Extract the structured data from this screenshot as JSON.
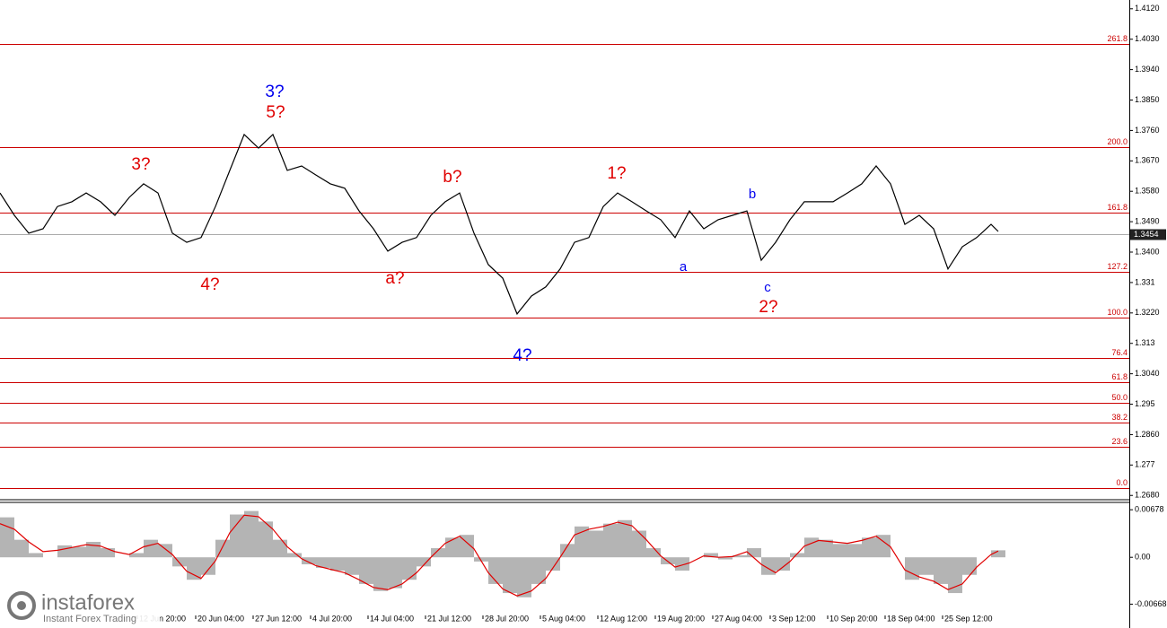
{
  "chart_data": [
    {
      "type": "line",
      "x": [
        0,
        4,
        8,
        12,
        16,
        20,
        24,
        28,
        32,
        36,
        40,
        44,
        48,
        52,
        56,
        60,
        64,
        68,
        72,
        76,
        80,
        84,
        88,
        92,
        96,
        100,
        104,
        108,
        112,
        116,
        120,
        124,
        128,
        132,
        136,
        140,
        144,
        148,
        152,
        156,
        160,
        164,
        168,
        172,
        176,
        180,
        184,
        188,
        192,
        196,
        200,
        204,
        208,
        212,
        216,
        220,
        224,
        228,
        232,
        236,
        240,
        244,
        248,
        252,
        256,
        260,
        264,
        268,
        272,
        276,
        278
      ],
      "values": [
        1.3575,
        1.3509,
        1.3456,
        1.3469,
        1.3535,
        1.3549,
        1.3575,
        1.3549,
        1.3509,
        1.3562,
        1.3602,
        1.3575,
        1.3456,
        1.3429,
        1.3443,
        1.3535,
        1.3642,
        1.3748,
        1.3708,
        1.3748,
        1.3642,
        1.3655,
        1.3628,
        1.3602,
        1.3589,
        1.3522,
        1.3469,
        1.3403,
        1.3429,
        1.3443,
        1.3509,
        1.3549,
        1.3575,
        1.3456,
        1.3363,
        1.3323,
        1.3217,
        1.327,
        1.3297,
        1.335,
        1.3429,
        1.3443,
        1.3535,
        1.3575,
        1.3549,
        1.3522,
        1.3496,
        1.3443,
        1.3522,
        1.3469,
        1.3496,
        1.3509,
        1.3522,
        1.3376,
        1.3429,
        1.3496,
        1.3549,
        1.3549,
        1.3549,
        1.3575,
        1.3602,
        1.3655,
        1.3602,
        1.3482,
        1.3509,
        1.3469,
        1.335,
        1.3416,
        1.3443,
        1.3482,
        1.3461
      ],
      "color": "#000000",
      "xlim": [
        0,
        314.5
      ],
      "ylim": [
        1.267,
        1.4146
      ],
      "xticks": [
        {
          "value": 38.25,
          "label": "12 Jun 20:00"
        },
        {
          "value": 54.5,
          "label": "20 Jun 04:00"
        },
        {
          "value": 70.5,
          "label": "27 Jun 12:00"
        },
        {
          "value": 86.5,
          "label": "4 Jul 20:00"
        },
        {
          "value": 102.5,
          "label": "14 Jul 04:00"
        },
        {
          "value": 118.5,
          "label": "21 Jul 12:00"
        },
        {
          "value": 134.5,
          "label": "28 Jul 20:00"
        },
        {
          "value": 150.5,
          "label": "5 Aug 04:00"
        },
        {
          "value": 166.5,
          "label": "12 Aug 12:00"
        },
        {
          "value": 182.5,
          "label": "19 Aug 20:00"
        },
        {
          "value": 198.5,
          "label": "27 Aug 04:00"
        },
        {
          "value": 214.5,
          "label": "3 Sep 12:00"
        },
        {
          "value": 230.5,
          "label": "10 Sep 20:00"
        },
        {
          "value": 246.5,
          "label": "18 Sep 04:00"
        },
        {
          "value": 262.5,
          "label": "25 Sep 12:00"
        }
      ],
      "yticks": [
        {
          "value": 1.412,
          "label": "1.4120"
        },
        {
          "value": 1.403,
          "label": "1.4030"
        },
        {
          "value": 1.394,
          "label": "1.3940"
        },
        {
          "value": 1.385,
          "label": "1.3850"
        },
        {
          "value": 1.376,
          "label": "1.3760"
        },
        {
          "value": 1.367,
          "label": "1.3670"
        },
        {
          "value": 1.358,
          "label": "1.3580"
        },
        {
          "value": 1.349,
          "label": "1.3490"
        },
        {
          "value": 1.34,
          "label": "1.3400"
        },
        1.331,
        {
          "value": 1.322,
          "label": "1.3220"
        },
        1.313,
        {
          "value": 1.304,
          "label": "1.3040"
        },
        1.295,
        {
          "value": 1.286,
          "label": "1.2860"
        },
        1.277,
        {
          "value": 1.268,
          "label": "1.2680"
        }
      ],
      "levels": [
        {
          "label": "261.8",
          "value": 1.4016
        },
        {
          "label": "200.0",
          "value": 1.3711
        },
        {
          "label": "161.8",
          "value": 1.3517
        },
        {
          "label": "127.2",
          "value": 1.3342
        },
        {
          "label": "100.0",
          "value": 1.3206
        },
        {
          "label": "76.4",
          "value": 1.3087
        },
        {
          "label": "61.8",
          "value": 1.3015
        },
        {
          "label": "50.0",
          "value": 1.2954
        },
        {
          "label": "38.2",
          "value": 1.2896
        },
        {
          "label": "23.6",
          "value": 1.2824
        },
        {
          "label": "0.0",
          "value": 1.2702
        }
      ],
      "level_color": "#cc0000",
      "last_value": 1.3454,
      "annotations": [
        "3?",
        "5?",
        "3?",
        "4?",
        "a?",
        "b?",
        "4?",
        "1?",
        "a",
        "b",
        "c",
        "2?"
      ]
    },
    {
      "type": "oscillator",
      "x": [
        0,
        4,
        8,
        12,
        16,
        20,
        24,
        28,
        32,
        36,
        40,
        44,
        48,
        52,
        56,
        60,
        64,
        68,
        72,
        76,
        80,
        84,
        88,
        92,
        96,
        100,
        104,
        108,
        112,
        116,
        120,
        124,
        128,
        132,
        136,
        140,
        144,
        148,
        152,
        156,
        160,
        164,
        168,
        172,
        176,
        180,
        184,
        188,
        192,
        196,
        200,
        204,
        208,
        212,
        216,
        220,
        224,
        228,
        232,
        236,
        240,
        244,
        248,
        252,
        256,
        260,
        264,
        268,
        272,
        276,
        278
      ],
      "series": [
        {
          "color": "#b4b4b4",
          "values": [
            0.0057,
            0.0025,
            0.0006,
            0,
            0.0017,
            0.0015,
            0.0022,
            0.0013,
            0,
            0.0006,
            0.0025,
            0.0019,
            -0.0013,
            -0.0032,
            -0.0025,
            0.0025,
            0.0061,
            0.0066,
            0.0051,
            0.0025,
            0.0006,
            -0.001,
            -0.0015,
            -0.0019,
            -0.0025,
            -0.0038,
            -0.0048,
            -0.0044,
            -0.0032,
            -0.0013,
            0.0013,
            0.0028,
            0.0032,
            -0.0006,
            -0.0038,
            -0.0051,
            -0.0057,
            -0.0038,
            -0.0019,
            0.0019,
            0.0044,
            0.0038,
            0.0048,
            0.0053,
            0.0038,
            0.0013,
            -0.001,
            -0.0019,
            0,
            0.0006,
            -0.0003,
            0.0003,
            0.0013,
            -0.0025,
            -0.0019,
            0.0006,
            0.0028,
            0.0025,
            0.0019,
            0.0019,
            0.0028,
            0.0032,
            0,
            -0.0032,
            -0.0025,
            -0.0038,
            -0.0051,
            -0.0025,
            0,
            0.001,
            0.001
          ]
        },
        {
          "color": "#e00000",
          "values": [
            0.0048,
            0.004,
            0.0022,
            0.0008,
            0.001,
            0.0014,
            0.0018,
            0.0016,
            0.0008,
            0.0004,
            0.0015,
            0.002,
            0.0004,
            -0.002,
            -0.003,
            -0.0005,
            0.0035,
            0.006,
            0.0058,
            0.004,
            0.0015,
            -0.0002,
            -0.0012,
            -0.0017,
            -0.0022,
            -0.0032,
            -0.0043,
            -0.0046,
            -0.0038,
            -0.0022,
            0,
            0.002,
            0.003,
            0.0012,
            -0.0022,
            -0.0045,
            -0.0055,
            -0.0048,
            -0.003,
            0,
            0.0032,
            0.004,
            0.0044,
            0.005,
            0.0045,
            0.0025,
            0.0002,
            -0.0014,
            -0.0008,
            0.0002,
            0,
            0.0001,
            0.0008,
            -0.001,
            -0.0022,
            -0.0006,
            0.0016,
            0.0024,
            0.0022,
            0.002,
            0.0024,
            0.003,
            0.0015,
            -0.0018,
            -0.0028,
            -0.0034,
            -0.0046,
            -0.0038,
            -0.0014,
            0.0004,
            0.0009
          ]
        }
      ],
      "xlim": [
        0,
        314.5
      ],
      "ylim": [
        -0.0088,
        0.0077
      ],
      "yticks": [
        0.00678,
        {
          "value": 0,
          "label": "0.00"
        },
        -0.00668
      ]
    }
  ],
  "brand": {
    "name": "instaforex",
    "tagline": "Instant Forex Trading"
  }
}
